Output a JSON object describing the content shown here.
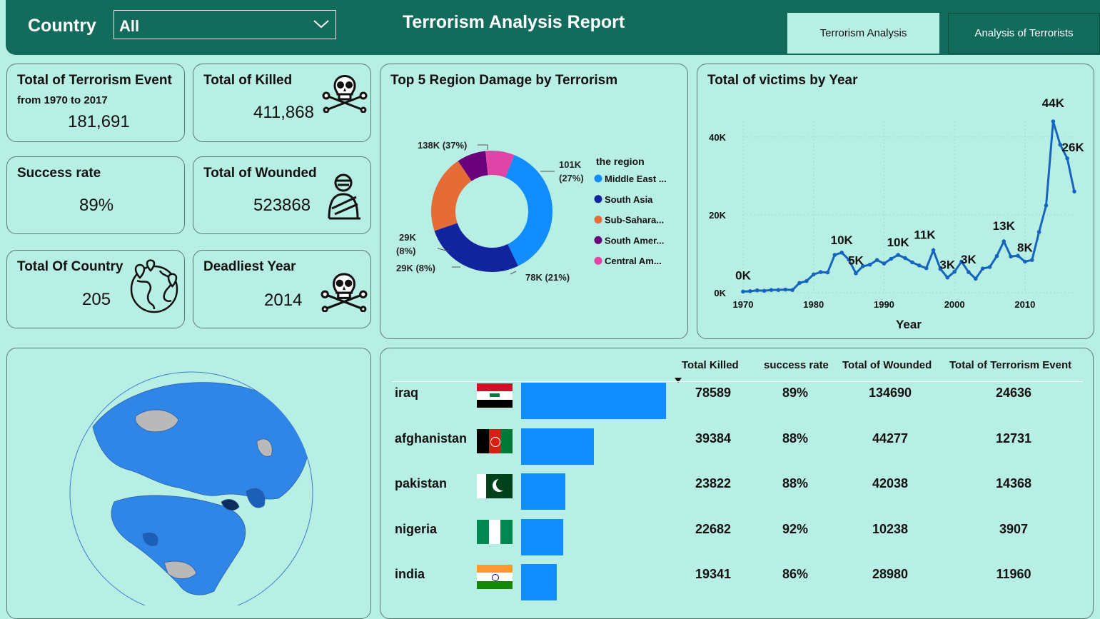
{
  "header": {
    "country_label": "Country",
    "country_value": "All",
    "title": "Terrorism Analysis Report",
    "tabs": [
      "Terrorism Analysis",
      "Analysis of Terrorists"
    ]
  },
  "kpis": {
    "events": {
      "title": "Total of Terrorism Event",
      "subtitle": "from 1970 to 2017",
      "value": "181,691"
    },
    "killed": {
      "title": "Total of Killed",
      "value": "411,868",
      "icon": "skull-crossbones-icon"
    },
    "success": {
      "title": "Success rate",
      "value": "89%"
    },
    "wounded": {
      "title": "Total of Wounded",
      "value": "523868",
      "icon": "wounded-person-icon"
    },
    "countries": {
      "title": "Total Of Country",
      "value": "205",
      "icon": "globe-pins-icon"
    },
    "deadliest": {
      "title": "Deadliest Year",
      "value": "2014",
      "icon": "skull-crossbones-icon"
    }
  },
  "colors": {
    "header": "#136b5c",
    "background": "#b8efe4",
    "bar": "#118dff",
    "line": "#1565c0"
  },
  "chart_data": [
    {
      "type": "pie",
      "title": "Top 5 Region Damage by Terrorism",
      "legend_title": "the region",
      "legend_position": "right",
      "categories": [
        "Middle East ...",
        "South Asia",
        "Sub-Sahara...",
        "South Amer...",
        "Central Am..."
      ],
      "values": [
        138000,
        101000,
        78000,
        29000,
        29000
      ],
      "labels": [
        "138K (37%)",
        "101K (27%)",
        "78K (21%)",
        "29K (8%)",
        "29K (8%)"
      ],
      "colors": [
        "#118dff",
        "#12239e",
        "#e66c37",
        "#6b007b",
        "#e044a7"
      ]
    },
    {
      "type": "line",
      "title": "Total of victims by Year",
      "xlabel": "Year",
      "ylabel": "",
      "xlim": [
        1970,
        2017
      ],
      "ylim": [
        0,
        44000
      ],
      "xticks": [
        "1970",
        "1980",
        "1990",
        "2000",
        "2010"
      ],
      "yticks": [
        "0K",
        "20K",
        "40K"
      ],
      "x": [
        1970,
        1971,
        1972,
        1973,
        1974,
        1975,
        1976,
        1977,
        1978,
        1979,
        1980,
        1981,
        1982,
        1983,
        1984,
        1985,
        1986,
        1987,
        1988,
        1989,
        1990,
        1991,
        1992,
        1993,
        1994,
        1995,
        1996,
        1997,
        1998,
        1999,
        2000,
        2001,
        2002,
        2003,
        2004,
        2005,
        2006,
        2007,
        2008,
        2009,
        2010,
        2011,
        2012,
        2013,
        2014,
        2015,
        2016,
        2017
      ],
      "values": [
        300,
        400,
        600,
        500,
        700,
        700,
        800,
        700,
        2500,
        3000,
        4700,
        5300,
        5200,
        9700,
        10300,
        8500,
        5000,
        6800,
        7200,
        8400,
        7500,
        8700,
        9700,
        8900,
        7800,
        7000,
        6300,
        10900,
        6100,
        3900,
        5400,
        8000,
        5300,
        3600,
        6200,
        6600,
        9400,
        13200,
        9300,
        9500,
        8000,
        8400,
        15600,
        22400,
        44000,
        38000,
        34500,
        26000
      ],
      "annotations": [
        "0K",
        "10K",
        "5K",
        "10K",
        "11K",
        "3K",
        "3K",
        "13K",
        "8K",
        "44K",
        "26K"
      ]
    },
    {
      "type": "bar",
      "title": "",
      "columns": [
        "Total Killed",
        "success rate",
        "Total of Wounded",
        "Total of Terrorism Event"
      ],
      "categories": [
        "iraq",
        "afghanistan",
        "pakistan",
        "nigeria",
        "india"
      ],
      "values": [
        78589,
        39384,
        23822,
        22682,
        19341
      ],
      "success_rate": [
        "89%",
        "88%",
        "88%",
        "92%",
        "86%"
      ],
      "wounded": [
        "134690",
        "44277",
        "42038",
        "10238",
        "28980"
      ],
      "events": [
        "24636",
        "12731",
        "14368",
        "3907",
        "11960"
      ],
      "killed_display": [
        "78589",
        "39384",
        "23822",
        "22682",
        "19341"
      ]
    }
  ]
}
